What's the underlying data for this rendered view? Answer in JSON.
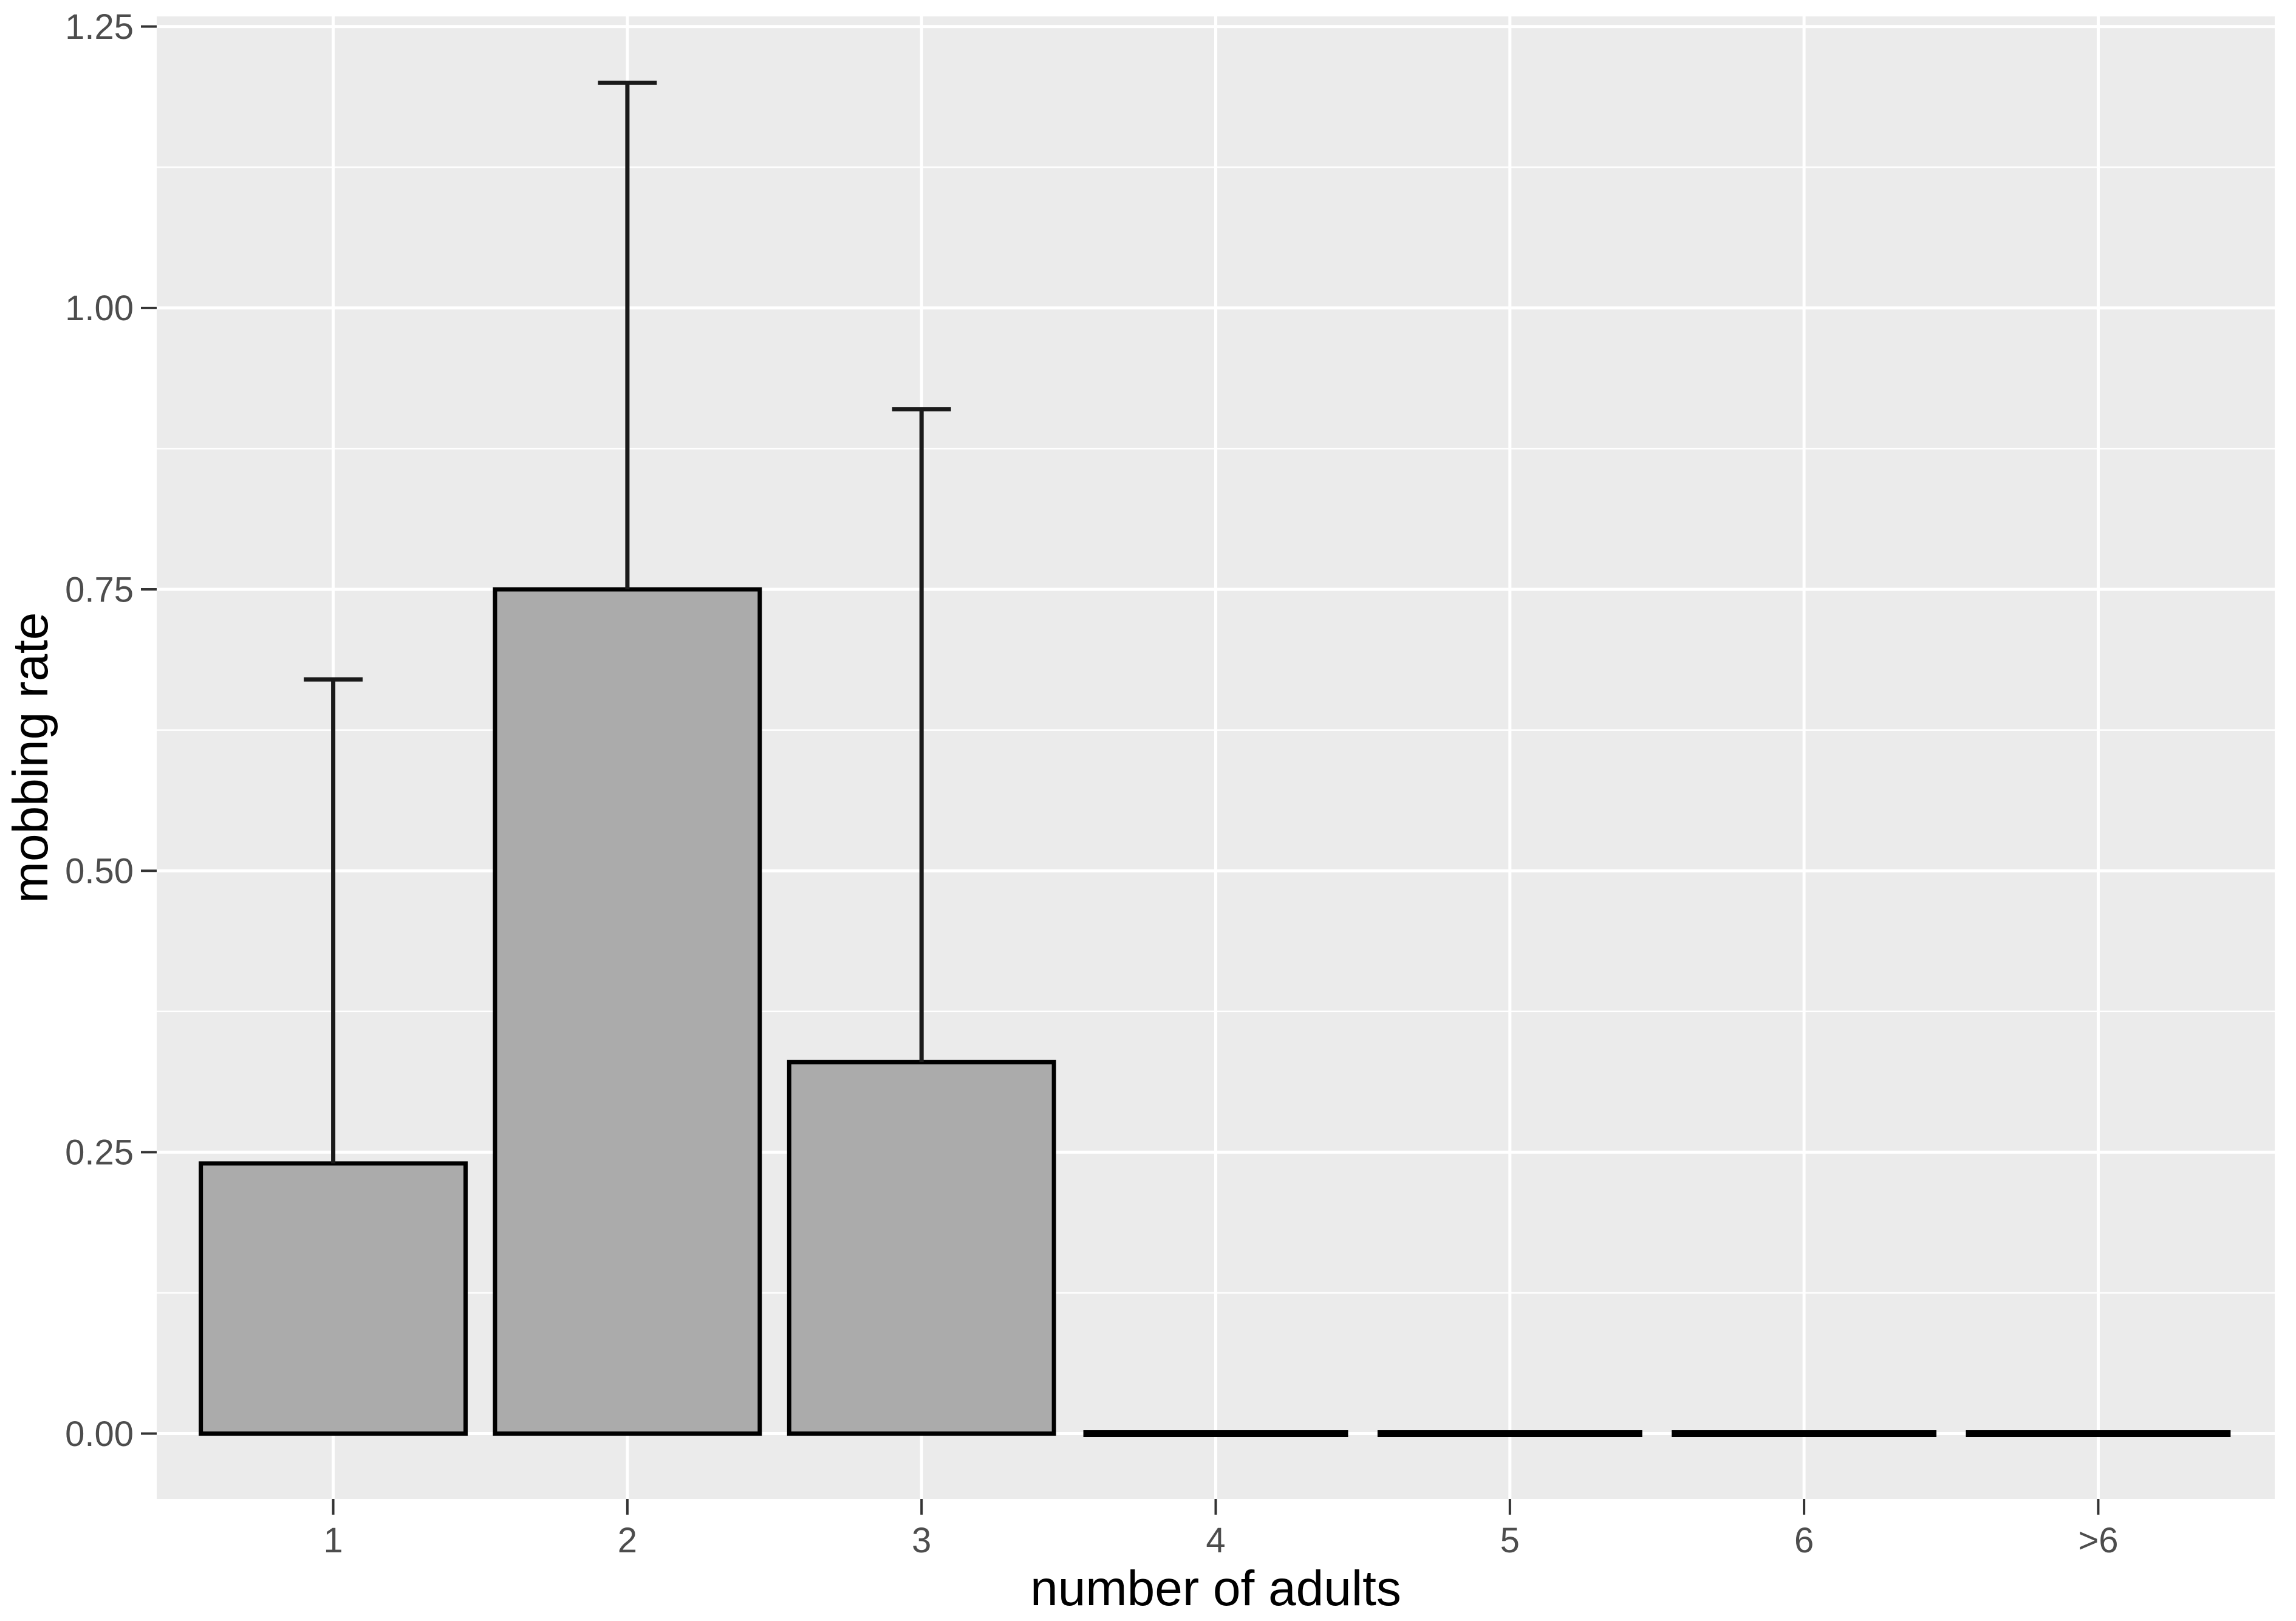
{
  "chart_data": {
    "type": "bar",
    "title": "",
    "xlabel": "number of adults",
    "ylabel": "mobbing rate",
    "categories": [
      "1",
      "2",
      "3",
      "4",
      "5",
      "6",
      ">6"
    ],
    "values": [
      0.24,
      0.75,
      0.33,
      0,
      0,
      0,
      0
    ],
    "error_upper": [
      0.67,
      1.2,
      0.91,
      null,
      null,
      null,
      null
    ],
    "yticks": [
      0,
      0.25,
      0.5,
      0.75,
      1,
      1.25
    ],
    "ytick_labels": [
      "0.00",
      "0.25",
      "0.50",
      "0.75",
      "1.00",
      "1.25"
    ],
    "ylim": [
      -0.058,
      1.259
    ],
    "bar_width_fraction": 0.9,
    "error_cap_width_fraction": 0.2,
    "grid": "white major + minor horizontal gridlines, white vertical gridlines at each category, no legend",
    "legend_position": "none",
    "colors": {
      "page_background": "#ffffff",
      "panel_background": "#ebebeb",
      "gridline": "#ffffff",
      "bar_fill": "#ababab",
      "bar_stroke": "#000000",
      "error_bar": "#1a1a1a",
      "tick_mark": "#333333",
      "tick_label_text": "#4d4d4d",
      "axis_title_text": "#000000"
    }
  }
}
